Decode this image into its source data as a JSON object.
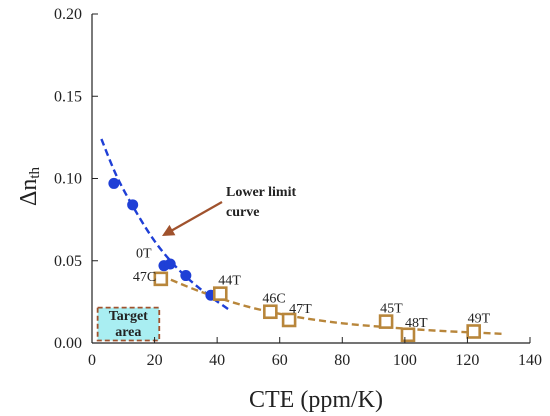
{
  "chart_data": {
    "type": "scatter",
    "xlabel": "CTE (ppm/K)",
    "ylabel": "Δn",
    "ylabel_sub": "th",
    "xlim": [
      0,
      140
    ],
    "ylim": [
      0,
      0.2
    ],
    "xticks": [
      "0",
      "20",
      "40",
      "60",
      "80",
      "100",
      "120",
      "140"
    ],
    "yticks": [
      "0.00",
      "0.05",
      "0.10",
      "0.15",
      "0.20"
    ],
    "grid": false,
    "colors": {
      "blue": "#1f3fd6",
      "orange": "#b8863b",
      "target_fill": "#a9eef2",
      "target_border": "#a0522d",
      "arrow": "#a0522d"
    },
    "series": [
      {
        "marker": "filled-circle",
        "x": [
          7,
          13,
          23,
          25,
          30,
          38
        ],
        "y": [
          0.097,
          0.084,
          0.047,
          0.048,
          0.041,
          0.029
        ],
        "labels": [
          "",
          "",
          "0T",
          "",
          "",
          ""
        ]
      },
      {
        "marker": "open-square",
        "x": [
          22,
          41,
          57,
          63,
          94,
          101,
          122
        ],
        "y": [
          0.039,
          0.03,
          0.019,
          0.014,
          0.013,
          0.005,
          0.007
        ],
        "labels": [
          "47C",
          "44T",
          "46C",
          "47T",
          "45T",
          "48T",
          "49T"
        ]
      }
    ],
    "curves": [
      {
        "style": "dashed",
        "color": "blue",
        "x": [
          3,
          8,
          14,
          20,
          26,
          32,
          38,
          44
        ],
        "y": [
          0.124,
          0.101,
          0.08,
          0.062,
          0.048,
          0.037,
          0.028,
          0.02
        ]
      },
      {
        "style": "dashed",
        "color": "orange",
        "x": [
          22,
          35,
          50,
          65,
          80,
          95,
          110,
          132
        ],
        "y": [
          0.041,
          0.031,
          0.022,
          0.016,
          0.012,
          0.0095,
          0.0075,
          0.0055
        ]
      }
    ],
    "annotations": {
      "lower_limit_line1": "Lower limit",
      "lower_limit_line2": "curve",
      "target_line1": "Target",
      "target_line2": "area"
    }
  }
}
